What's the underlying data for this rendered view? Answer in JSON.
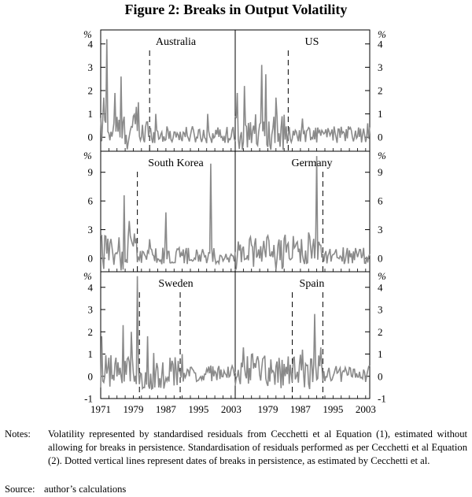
{
  "figure": {
    "title": "Figure 2: Breaks in Output Volatility",
    "notes_label": "Notes:",
    "notes_text": "Volatility represented by standardised residuals from Cecchetti et al Equation (1), estimated without allowing for breaks in persistence. Standardisation of residuals performed as per Cecchetti et al Equation (2). Dotted vertical lines represent dates of breaks in persistence, as estimated by Cecchetti et al.",
    "source_label": "Source:",
    "source_text": "author’s calculations",
    "unit_label": "%"
  },
  "chart_data": [
    {
      "type": "line",
      "title": "Australia",
      "row": 1,
      "side": "left",
      "xlim": [
        1971,
        2004
      ],
      "ylim": [
        -0.6,
        4.6
      ],
      "yticks": [
        0,
        1,
        2,
        3,
        4
      ],
      "xticks": [],
      "breaks": [
        1983
      ],
      "peaks": [
        {
          "x": 1972.5,
          "y": 4.2
        },
        {
          "x": 1971.8,
          "y": 1.7
        },
        {
          "x": 1976.0,
          "y": 2.6
        },
        {
          "x": 1974.5,
          "y": 1.9
        },
        {
          "x": 1980.3,
          "y": 1.5
        },
        {
          "x": 1979.8,
          "y": 1.3
        },
        {
          "x": 1984.5,
          "y": 1.0
        },
        {
          "x": 1997.2,
          "y": 1.0
        }
      ],
      "color": "#8a8a8a"
    },
    {
      "type": "line",
      "title": "US",
      "row": 1,
      "side": "right",
      "xlim": [
        1971,
        2004
      ],
      "ylim": [
        -0.6,
        4.6
      ],
      "yticks": [
        0,
        1,
        2,
        3,
        4
      ],
      "xticks": [],
      "breaks": [
        1984
      ],
      "peaks": [
        {
          "x": 1971.5,
          "y": 1.9
        },
        {
          "x": 1973.3,
          "y": 2.2
        },
        {
          "x": 1977.5,
          "y": 3.1
        },
        {
          "x": 1978.5,
          "y": 2.7
        },
        {
          "x": 1981.0,
          "y": 1.7
        },
        {
          "x": 1982.6,
          "y": 0.9
        },
        {
          "x": 1987.5,
          "y": 0.8
        },
        {
          "x": 2003.5,
          "y": 0.6
        }
      ],
      "color": "#8a8a8a"
    },
    {
      "type": "line",
      "title": "South Korea",
      "row": 2,
      "side": "left",
      "xlim": [
        1971,
        2004
      ],
      "ylim": [
        -1.4,
        11.2
      ],
      "yticks": [
        0,
        3,
        6,
        9
      ],
      "xticks": [],
      "breaks": [
        1980
      ],
      "peaks": [
        {
          "x": 1971.3,
          "y": 2.4
        },
        {
          "x": 1976.8,
          "y": 6.6
        },
        {
          "x": 1978.0,
          "y": 3.9
        },
        {
          "x": 1979.2,
          "y": 2.6
        },
        {
          "x": 1987.0,
          "y": 4.8
        },
        {
          "x": 1983.0,
          "y": 2.0
        },
        {
          "x": 1998.0,
          "y": 9.9
        }
      ],
      "color": "#8a8a8a"
    },
    {
      "type": "line",
      "title": "Germany",
      "row": 2,
      "side": "right",
      "xlim": [
        1971,
        2004
      ],
      "ylim": [
        -1.4,
        11.2
      ],
      "yticks": [
        0,
        3,
        6,
        9
      ],
      "xticks": [],
      "breaks": [
        1992.5
      ],
      "peaks": [
        {
          "x": 1990.9,
          "y": 10.7
        },
        {
          "x": 1989.0,
          "y": 2.7
        },
        {
          "x": 1984.0,
          "y": 1.6
        },
        {
          "x": 1975.0,
          "y": 1.4
        }
      ],
      "color": "#8a8a8a"
    },
    {
      "type": "line",
      "title": "Sweden",
      "row": 3,
      "side": "left",
      "xlim": [
        1971,
        2004
      ],
      "ylim": [
        -1,
        4.7
      ],
      "yticks": [
        -1,
        0,
        1,
        2,
        3,
        4
      ],
      "xticks": [
        1971,
        1979,
        1987,
        1995,
        2003
      ],
      "breaks": [
        1980.5,
        1990.5
      ],
      "peaks": [
        {
          "x": 1971.3,
          "y": 1.8
        },
        {
          "x": 1976.5,
          "y": 2.3
        },
        {
          "x": 1978.5,
          "y": 2.0
        },
        {
          "x": 1980.0,
          "y": 4.5
        },
        {
          "x": 1982.5,
          "y": 1.8
        },
        {
          "x": 1991.0,
          "y": 1.0
        },
        {
          "x": 1993.0,
          "y": 0.4
        }
      ],
      "color": "#8a8a8a"
    },
    {
      "type": "line",
      "title": "Spain",
      "row": 3,
      "side": "right",
      "xlim": [
        1971,
        2004
      ],
      "ylim": [
        -1,
        4.7
      ],
      "yticks": [
        -1,
        0,
        1,
        2,
        3,
        4
      ],
      "xticks": [
        1979,
        1987,
        1995,
        2003
      ],
      "breaks": [
        1985,
        1992.5
      ],
      "peaks": [
        {
          "x": 1973.0,
          "y": 1.3
        },
        {
          "x": 1987.5,
          "y": 1.2
        },
        {
          "x": 1990.5,
          "y": 2.8
        },
        {
          "x": 1992.0,
          "y": 1.3
        },
        {
          "x": 1999.0,
          "y": 0.4
        }
      ],
      "color": "#8a8a8a"
    }
  ]
}
